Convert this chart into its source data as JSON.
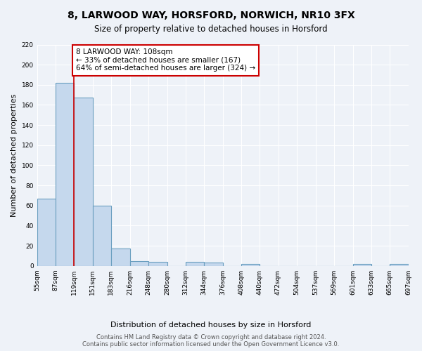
{
  "title_line1": "8, LARWOOD WAY, HORSFORD, NORWICH, NR10 3FX",
  "title_line2": "Size of property relative to detached houses in Horsford",
  "xlabel": "Distribution of detached houses by size in Horsford",
  "ylabel": "Number of detached properties",
  "bar_color": "#c5d8ed",
  "bar_edge_color": "#6a9fc0",
  "bg_color": "#eef2f8",
  "grid_color": "#ffffff",
  "bins": [
    55,
    87,
    119,
    151,
    183,
    216,
    248,
    280,
    312,
    344,
    376,
    408,
    440,
    472,
    504,
    537,
    569,
    601,
    633,
    665,
    697
  ],
  "bin_labels": [
    "55sqm",
    "87sqm",
    "119sqm",
    "151sqm",
    "183sqm",
    "216sqm",
    "248sqm",
    "280sqm",
    "312sqm",
    "344sqm",
    "376sqm",
    "408sqm",
    "440sqm",
    "472sqm",
    "504sqm",
    "537sqm",
    "569sqm",
    "601sqm",
    "633sqm",
    "665sqm",
    "697sqm"
  ],
  "values": [
    67,
    182,
    167,
    60,
    17,
    5,
    4,
    0,
    4,
    3,
    0,
    2,
    0,
    0,
    0,
    0,
    0,
    2,
    0,
    2
  ],
  "red_line_bin_index": 2,
  "annotation_text": "8 LARWOOD WAY: 108sqm\n← 33% of detached houses are smaller (167)\n64% of semi-detached houses are larger (324) →",
  "annotation_box_color": "#ffffff",
  "annotation_border_color": "#cc0000",
  "ylim": [
    0,
    220
  ],
  "yticks": [
    0,
    20,
    40,
    60,
    80,
    100,
    120,
    140,
    160,
    180,
    200,
    220
  ],
  "footer_line1": "Contains HM Land Registry data © Crown copyright and database right 2024.",
  "footer_line2": "Contains public sector information licensed under the Open Government Licence v3.0.",
  "fig_bg_color": "#eef2f8",
  "title1_fontsize": 10,
  "title2_fontsize": 8.5,
  "ylabel_fontsize": 8,
  "xlabel_fontsize": 8,
  "tick_fontsize": 6.5,
  "footer_fontsize": 6
}
